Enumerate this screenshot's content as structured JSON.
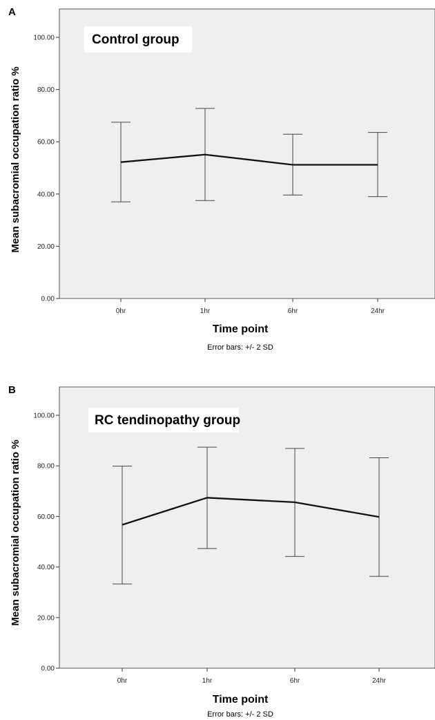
{
  "chart_data": [
    {
      "panel_label": "A",
      "type": "line",
      "title": "Control group",
      "xlabel": "Time point",
      "ylabel": "Mean subacromial occupation ratio %",
      "footnote": "Error bars: +/- 2 SD",
      "categories": [
        "0hr",
        "1hr",
        "6hr",
        "24hr"
      ],
      "ylim": [
        0,
        110
      ],
      "yticks": [
        "0.00",
        "20.00",
        "40.00",
        "60.00",
        "80.00",
        "100.00"
      ],
      "series": [
        {
          "values": [
            52.2,
            55.1,
            51.2,
            51.2
          ],
          "error_low": [
            37.0,
            37.5,
            39.6,
            39.0
          ],
          "error_high": [
            67.5,
            72.8,
            62.9,
            63.6
          ]
        }
      ],
      "grid": false,
      "background": "#efefef"
    },
    {
      "panel_label": "B",
      "type": "line",
      "title": "RC tendinopathy group",
      "xlabel": "Time point",
      "ylabel": "Mean subacromial occupation ratio %",
      "footnote": "Error bars: +/- 2 SD",
      "categories": [
        "0hr",
        "1hr",
        "6hr",
        "24hr"
      ],
      "ylim": [
        0,
        110
      ],
      "yticks": [
        "0.00",
        "20.00",
        "40.00",
        "60.00",
        "80.00",
        "100.00"
      ],
      "series": [
        {
          "values": [
            56.7,
            67.4,
            65.6,
            59.8
          ],
          "error_low": [
            33.3,
            47.3,
            44.2,
            36.3
          ],
          "error_high": [
            79.9,
            87.4,
            86.9,
            83.2
          ]
        }
      ],
      "grid": false,
      "background": "#efefef"
    }
  ]
}
